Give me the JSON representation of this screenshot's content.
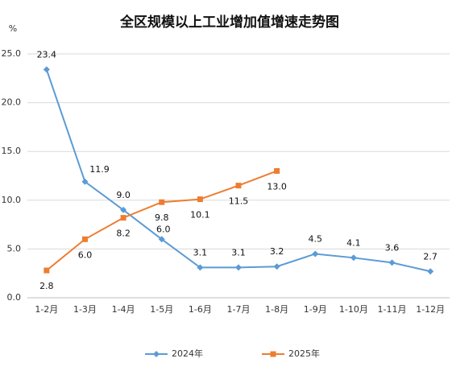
{
  "chart_data": {
    "type": "line",
    "title": "全区规模以上工业增加值增速走势图",
    "y_unit": "%",
    "categories": [
      "1-2月",
      "1-3月",
      "1-4月",
      "1-5月",
      "1-6月",
      "1-7月",
      "1-8月",
      "1-9月",
      "1-10月",
      "1-11月",
      "1-12月"
    ],
    "series": [
      {
        "name": "2024年",
        "color": "#5b9bd5",
        "marker": "diamond",
        "values": [
          23.4,
          11.9,
          9.0,
          6.0,
          3.1,
          3.1,
          3.2,
          4.5,
          4.1,
          3.6,
          2.7
        ],
        "value_labels": [
          "23.4",
          "11.9",
          "9.0",
          "6.0",
          "3.1",
          "3.1",
          "3.2",
          "4.5",
          "4.1",
          "3.6",
          "2.7"
        ]
      },
      {
        "name": "2025年",
        "color": "#ed7d31",
        "marker": "square",
        "values": [
          2.8,
          6.0,
          8.2,
          9.8,
          10.1,
          11.5,
          13.0,
          null,
          null,
          null,
          null
        ],
        "value_labels": [
          "2.8",
          "6.0",
          "8.2",
          "9.8",
          "10.1",
          "11.5",
          "13.0",
          null,
          null,
          null,
          null
        ]
      }
    ],
    "ylim": [
      0,
      25
    ],
    "yticks": [
      {
        "value": 0,
        "label": "0.0"
      },
      {
        "value": 5,
        "label": "5.0"
      },
      {
        "value": 10,
        "label": "10.0"
      },
      {
        "value": 15,
        "label": "15.0"
      },
      {
        "value": 20,
        "label": "20.0"
      },
      {
        "value": 25,
        "label": "25.0"
      }
    ],
    "grid": true,
    "legend": "bottom"
  }
}
